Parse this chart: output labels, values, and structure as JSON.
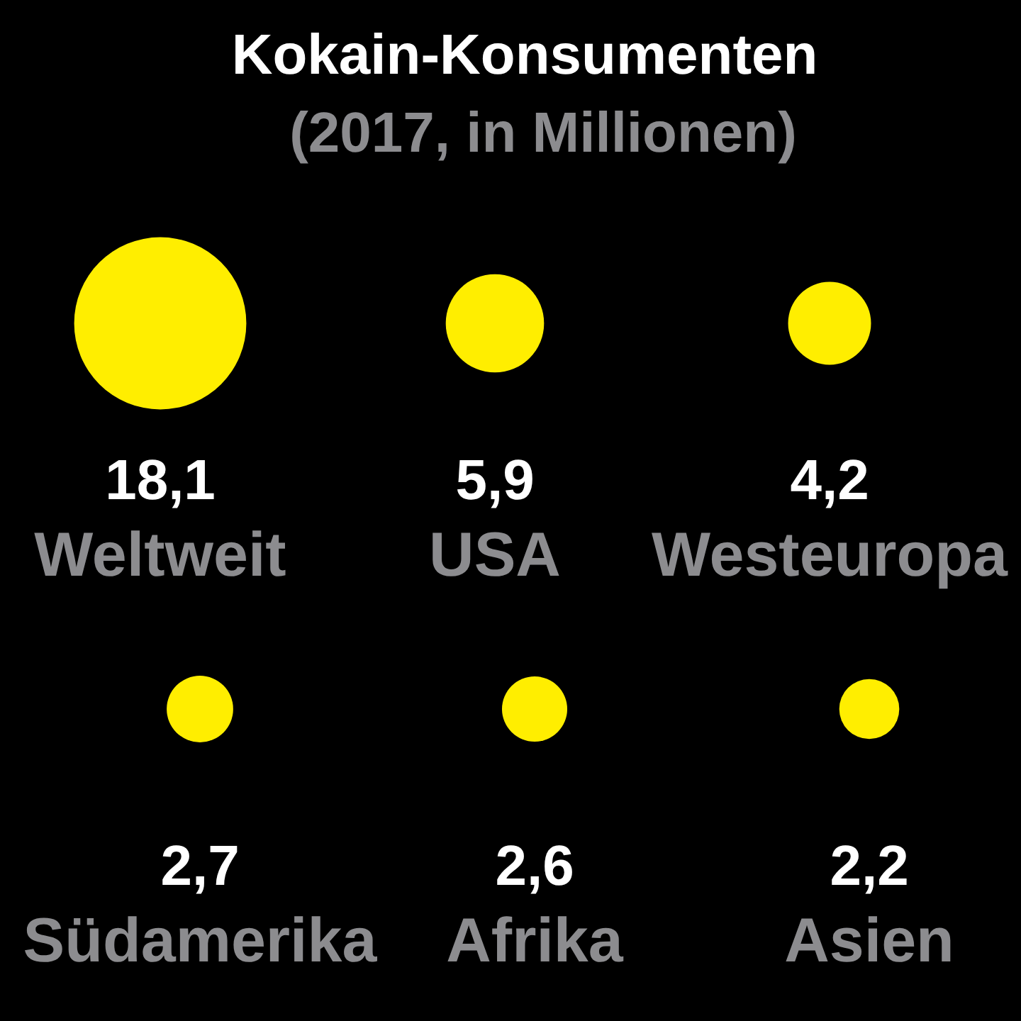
{
  "chart_data": {
    "type": "other",
    "title": "Kokain-Konsumenten",
    "subtitle": "(2017, in Millionen)",
    "categories": [
      "Weltweit",
      "USA",
      "Westeuropa",
      "Südamerika",
      "Afrika",
      "Asien"
    ],
    "values": [
      18.1,
      5.9,
      4.2,
      2.7,
      2.6,
      2.2
    ],
    "color": "#ffee00",
    "value_labels": [
      "18,1",
      "5,9",
      "4,2",
      "2,7",
      "2,6",
      "2,2"
    ]
  }
}
